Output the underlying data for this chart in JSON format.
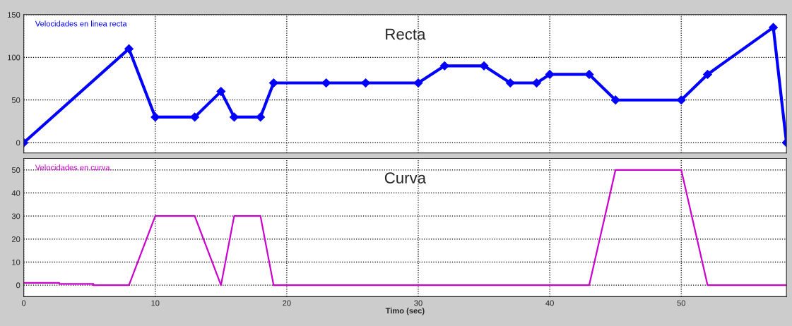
{
  "chart_data": [
    {
      "type": "line",
      "annotations": [
        {
          "text": "Recta"
        }
      ],
      "xlim": [
        0,
        58
      ],
      "xticks": [
        0,
        10,
        20,
        30,
        40,
        50
      ],
      "ylim": [
        -12,
        150
      ],
      "yticks": [
        0,
        50,
        100,
        150
      ],
      "grid": true,
      "tick_labels": "y",
      "marker": "diamond",
      "line_style": "solid",
      "series": [
        {
          "name": "Velocidades en linea recta",
          "color": "#0000ff",
          "x": [
            0,
            8,
            10,
            13,
            15,
            16,
            18,
            19,
            23,
            26,
            30,
            32,
            35,
            37,
            39,
            40,
            43,
            45,
            50,
            52,
            57,
            58
          ],
          "values": [
            0,
            110,
            30,
            30,
            60,
            30,
            30,
            70,
            70,
            70,
            70,
            90,
            90,
            70,
            70,
            80,
            80,
            50,
            50,
            80,
            135,
            0
          ]
        }
      ]
    },
    {
      "type": "line",
      "annotations": [
        {
          "text": "Curva"
        }
      ],
      "xlabel": "Timo (sec)",
      "xlim": [
        0,
        58
      ],
      "xticks": [
        0,
        10,
        20,
        30,
        40,
        50
      ],
      "ylim": [
        -5,
        55
      ],
      "yticks": [
        0,
        10,
        20,
        30,
        40,
        50
      ],
      "grid": true,
      "line_style": "solid",
      "series": [
        {
          "name": "Velocidades en curva.",
          "color": "#cc00cc",
          "x": [
            0,
            2.7,
            2.7,
            5.3,
            5.3,
            8,
            10,
            13,
            15,
            16,
            18,
            19,
            43,
            45,
            50,
            52,
            58
          ],
          "values": [
            1,
            1,
            0.5,
            0.5,
            0,
            0,
            30,
            30,
            0,
            30,
            30,
            0,
            0,
            50,
            50,
            0,
            0
          ]
        }
      ]
    }
  ]
}
